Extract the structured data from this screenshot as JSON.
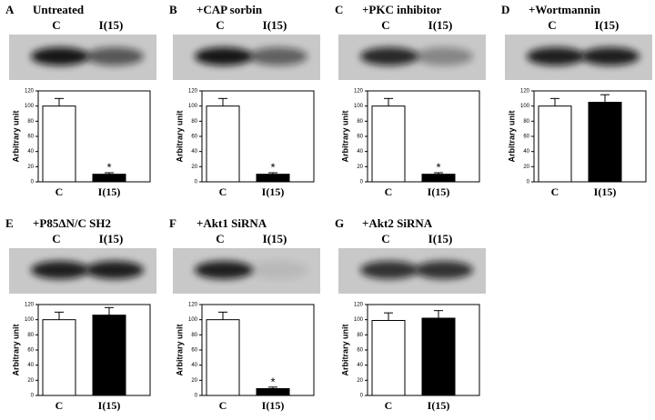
{
  "chart_data": [
    {
      "type": "bar",
      "panel": "A",
      "title": "Untreated",
      "lane_labels": [
        "C",
        "I(15)"
      ],
      "categories": [
        "C",
        "I(15)"
      ],
      "values": [
        100,
        10
      ],
      "errors": [
        10,
        2
      ],
      "annotation": "*",
      "y_label": "Arbitrary unit",
      "ylim": [
        0,
        120
      ],
      "yticks": [
        0,
        20,
        40,
        60,
        80,
        100,
        120
      ],
      "colors": [
        "#ffffff",
        "#000000"
      ]
    },
    {
      "type": "bar",
      "panel": "B",
      "title": "+CAP sorbin",
      "lane_labels": [
        "C",
        "I(15)"
      ],
      "categories": [
        "C",
        "I(15)"
      ],
      "values": [
        100,
        10
      ],
      "errors": [
        10,
        2
      ],
      "annotation": "*",
      "y_label": "Arbitrary unit",
      "ylim": [
        0,
        120
      ],
      "yticks": [
        0,
        20,
        40,
        60,
        80,
        100,
        120
      ],
      "colors": [
        "#ffffff",
        "#000000"
      ]
    },
    {
      "type": "bar",
      "panel": "C",
      "title": "+PKC inhibitor",
      "lane_labels": [
        "C",
        "I(15)"
      ],
      "categories": [
        "C",
        "I(15)"
      ],
      "values": [
        100,
        10
      ],
      "errors": [
        10,
        2
      ],
      "annotation": "*",
      "y_label": "Arbitrary unit",
      "ylim": [
        0,
        120
      ],
      "yticks": [
        0,
        20,
        40,
        60,
        80,
        100,
        120
      ],
      "colors": [
        "#ffffff",
        "#000000"
      ]
    },
    {
      "type": "bar",
      "panel": "D",
      "title": "+Wortmannin",
      "lane_labels": [
        "C",
        "I(15)"
      ],
      "categories": [
        "C",
        "I(15)"
      ],
      "values": [
        100,
        105
      ],
      "errors": [
        10,
        10
      ],
      "y_label": "Arbitrary unit",
      "ylim": [
        0,
        120
      ],
      "yticks": [
        0,
        20,
        40,
        60,
        80,
        100,
        120
      ],
      "colors": [
        "#ffffff",
        "#000000"
      ]
    },
    {
      "type": "bar",
      "panel": "E",
      "title": "+P85ΔN/C SH2",
      "lane_labels": [
        "C",
        "I(15)"
      ],
      "categories": [
        "C",
        "I(15)"
      ],
      "values": [
        100,
        106
      ],
      "errors": [
        10,
        10
      ],
      "y_label": "Arbitrary unit",
      "ylim": [
        0,
        120
      ],
      "yticks": [
        0,
        20,
        40,
        60,
        80,
        100,
        120
      ],
      "colors": [
        "#ffffff",
        "#000000"
      ]
    },
    {
      "type": "bar",
      "panel": "F",
      "title": "+Akt1 SiRNA",
      "lane_labels": [
        "C",
        "I(15)"
      ],
      "categories": [
        "C",
        "I(15)"
      ],
      "values": [
        100,
        9
      ],
      "errors": [
        10,
        2
      ],
      "annotation": "*",
      "y_label": "Arbitrary unit",
      "ylim": [
        0,
        120
      ],
      "yticks": [
        0,
        20,
        40,
        60,
        80,
        100,
        120
      ],
      "colors": [
        "#ffffff",
        "#000000"
      ]
    },
    {
      "type": "bar",
      "panel": "G",
      "title": "+Akt2 SiRNA",
      "lane_labels": [
        "C",
        "I(15)"
      ],
      "categories": [
        "C",
        "I(15)"
      ],
      "values": [
        99,
        102
      ],
      "errors": [
        10,
        10
      ],
      "y_label": "Arbitrary unit",
      "ylim": [
        0,
        120
      ],
      "yticks": [
        0,
        20,
        40,
        60,
        80,
        100,
        120
      ],
      "colors": [
        "#ffffff",
        "#000000"
      ]
    }
  ]
}
